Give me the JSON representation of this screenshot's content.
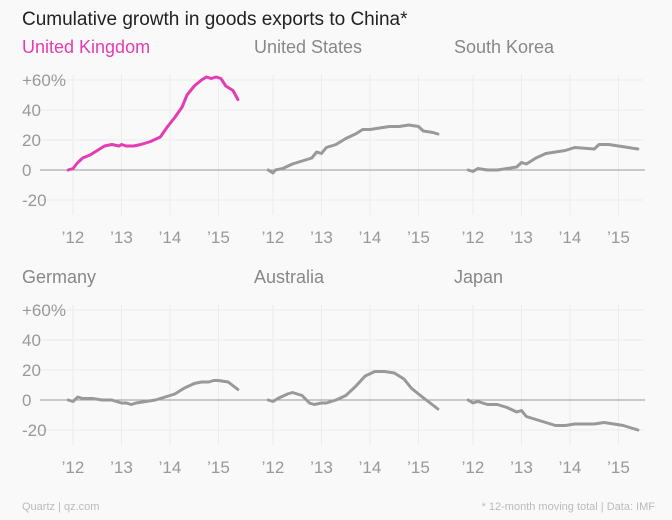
{
  "chart_data": {
    "type": "line",
    "title": "Cumulative growth in goods exports to China*",
    "ylim": [
      -30,
      65
    ],
    "xlim": [
      2011.65,
      2015.55
    ],
    "y_ticks": [
      "+60%",
      "40",
      "20",
      "0",
      "-20"
    ],
    "y_tick_values": [
      60,
      40,
      20,
      0,
      -20
    ],
    "x_ticks": [
      "’12",
      "’13",
      "’14",
      "’15"
    ],
    "x_tick_values": [
      2012,
      2013,
      2014,
      2015
    ],
    "grid": true,
    "highlight_color": "#e33cb4",
    "line_color": "#999999",
    "panels": [
      {
        "name": "United Kingdom",
        "highlight": true,
        "x": [
          2011.9,
          2012.0,
          2012.1,
          2012.2,
          2012.35,
          2012.5,
          2012.65,
          2012.8,
          2012.95,
          2013.0,
          2013.1,
          2013.25,
          2013.4,
          2013.6,
          2013.8,
          2013.95,
          2014.1,
          2014.25,
          2014.35,
          2014.5,
          2014.65,
          2014.75,
          2014.85,
          2014.95,
          2015.05,
          2015.15,
          2015.3,
          2015.4
        ],
        "y": [
          0,
          1,
          5,
          8,
          10,
          13,
          16,
          17,
          16,
          17,
          16,
          16,
          17,
          19,
          22,
          29,
          35,
          42,
          50,
          56,
          60,
          62,
          61,
          62,
          61,
          56,
          53,
          47
        ]
      },
      {
        "name": "United States",
        "highlight": false,
        "x": [
          2011.9,
          2012.0,
          2012.05,
          2012.2,
          2012.4,
          2012.6,
          2012.8,
          2012.9,
          2013.0,
          2013.1,
          2013.3,
          2013.5,
          2013.7,
          2013.85,
          2014.0,
          2014.2,
          2014.4,
          2014.6,
          2014.8,
          2015.0,
          2015.1,
          2015.3,
          2015.4
        ],
        "y": [
          0,
          -2,
          0,
          1,
          4,
          6,
          8,
          12,
          11,
          15,
          17,
          21,
          24,
          27,
          27,
          28,
          29,
          29,
          30,
          29,
          26,
          25,
          24
        ]
      },
      {
        "name": "South Korea",
        "highlight": false,
        "x": [
          2011.9,
          2012.0,
          2012.1,
          2012.3,
          2012.5,
          2012.7,
          2012.9,
          2013.0,
          2013.1,
          2013.3,
          2013.5,
          2013.7,
          2013.9,
          2014.1,
          2014.3,
          2014.5,
          2014.6,
          2014.8,
          2015.0,
          2015.2,
          2015.4
        ],
        "y": [
          0,
          -1,
          1,
          0,
          0,
          1,
          2,
          5,
          4,
          8,
          11,
          12,
          13,
          15,
          14.5,
          14,
          17,
          17,
          16,
          15,
          14
        ]
      },
      {
        "name": "Germany",
        "highlight": false,
        "x": [
          2011.9,
          2012.0,
          2012.1,
          2012.2,
          2012.4,
          2012.6,
          2012.8,
          2013.0,
          2013.1,
          2013.2,
          2013.3,
          2013.5,
          2013.7,
          2013.9,
          2014.1,
          2014.3,
          2014.5,
          2014.65,
          2014.8,
          2014.9,
          2015.0,
          2015.2,
          2015.4
        ],
        "y": [
          0,
          -1,
          2,
          1,
          1,
          0,
          0,
          -2,
          -2,
          -3,
          -2,
          -1,
          0,
          2,
          4,
          8,
          11,
          12,
          12,
          13,
          13,
          12,
          7
        ]
      },
      {
        "name": "Australia",
        "highlight": false,
        "x": [
          2011.9,
          2012.0,
          2012.1,
          2012.3,
          2012.4,
          2012.6,
          2012.75,
          2012.85,
          2013.0,
          2013.1,
          2013.3,
          2013.5,
          2013.7,
          2013.9,
          2014.1,
          2014.3,
          2014.5,
          2014.7,
          2014.85,
          2015.0,
          2015.2,
          2015.4
        ],
        "y": [
          0,
          -1,
          1,
          4,
          5,
          3,
          -2,
          -3,
          -2,
          -2,
          0,
          3,
          9,
          16,
          19,
          19,
          18,
          14,
          8,
          4,
          -1,
          -6
        ]
      },
      {
        "name": "Japan",
        "highlight": false,
        "x": [
          2011.9,
          2012.0,
          2012.1,
          2012.3,
          2012.5,
          2012.7,
          2012.9,
          2013.0,
          2013.1,
          2013.3,
          2013.5,
          2013.7,
          2013.9,
          2014.1,
          2014.3,
          2014.5,
          2014.7,
          2014.9,
          2015.1,
          2015.3,
          2015.4
        ],
        "y": [
          0,
          -2,
          -1,
          -3,
          -3,
          -5,
          -8,
          -7,
          -11,
          -13,
          -15,
          -17,
          -17,
          -16,
          -16,
          -16,
          -15,
          -16,
          -17,
          -19,
          -20
        ]
      }
    ],
    "footer_left": "Quartz | qz.com",
    "footer_right": "* 12-month moving total | Data: IMF"
  }
}
